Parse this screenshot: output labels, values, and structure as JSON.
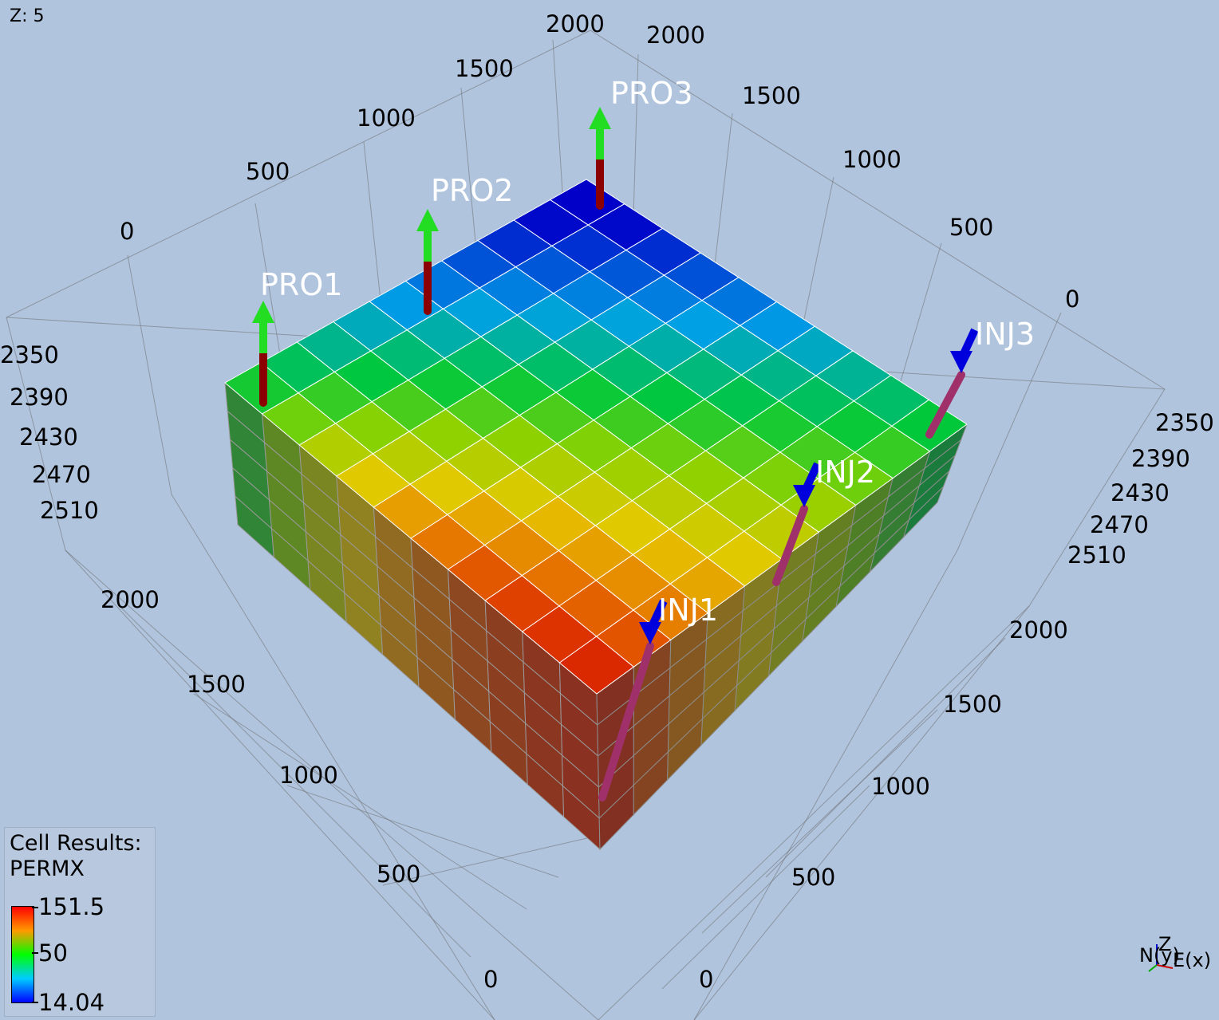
{
  "viewport": {
    "z_label": "Z: 5",
    "colors": {
      "background": "#b0c4de",
      "grid": "#707070",
      "producer_arrow": "#22dd22",
      "injector_arrow": "#0000dd"
    }
  },
  "axis_labels": {
    "x_left_top": [
      "0",
      "500",
      "1000",
      "1500",
      "2000"
    ],
    "y_right_top": [
      "2000",
      "1500",
      "1000",
      "500",
      "0"
    ],
    "depth_left": [
      "2350",
      "2390",
      "2430",
      "2470",
      "2510"
    ],
    "depth_right": [
      "2350",
      "2390",
      "2430",
      "2470",
      "2510"
    ],
    "bottom_left": [
      "2000",
      "1500",
      "1000",
      "500",
      "0"
    ],
    "bottom_right": [
      "2000",
      "1500",
      "1000",
      "500",
      "0"
    ]
  },
  "wells": [
    {
      "name": "PRO1",
      "type": "producer"
    },
    {
      "name": "PRO2",
      "type": "producer"
    },
    {
      "name": "PRO3",
      "type": "producer"
    },
    {
      "name": "INJ1",
      "type": "injector"
    },
    {
      "name": "INJ2",
      "type": "injector"
    },
    {
      "name": "INJ3",
      "type": "injector"
    }
  ],
  "legend": {
    "title_line1": "Cell Results:",
    "title_line2": "PERMX",
    "max": "151.5",
    "mid": "50",
    "min": "14.04",
    "gradient_icon": "rainbow-color-scale"
  },
  "axis_triad": {
    "x_label": "E(x)",
    "y_label": "N(y)",
    "z_label": "Z"
  },
  "grid_model": {
    "cells_i": 10,
    "cells_j": 10,
    "cells_k": 5,
    "colormap": "rainbow",
    "pattern": "permx-gradient-from-corner-to-corner"
  }
}
